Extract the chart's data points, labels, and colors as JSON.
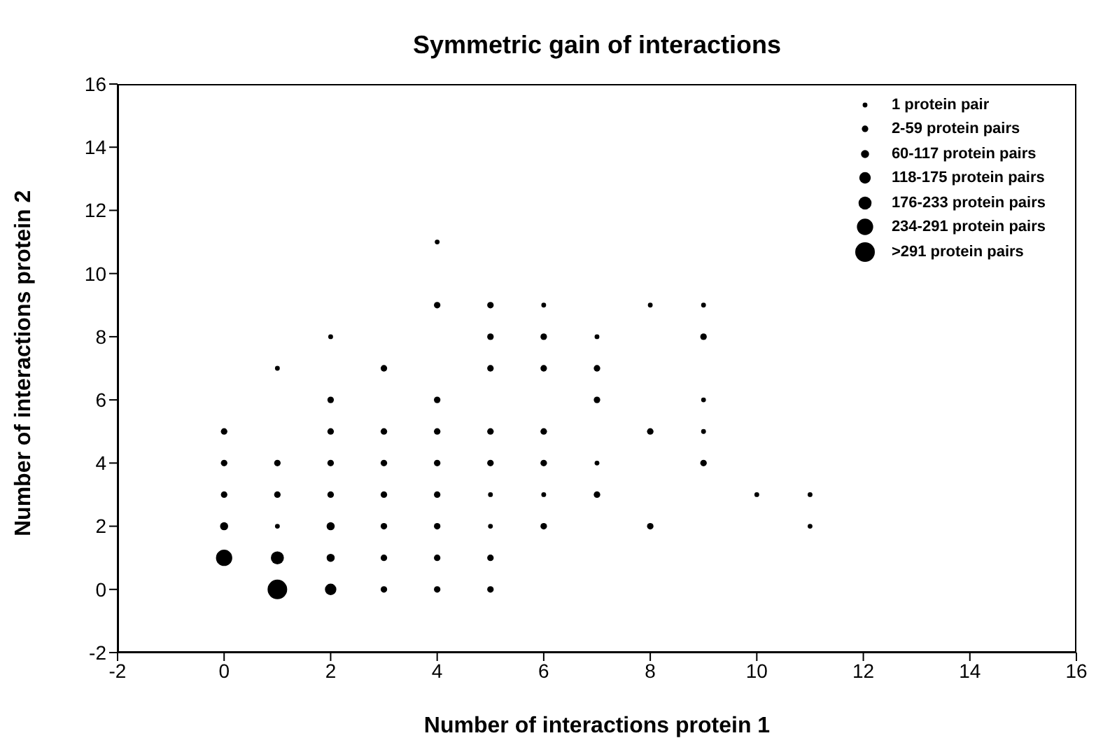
{
  "chart_data": {
    "type": "bubble",
    "title": "Symmetric gain of interactions",
    "xlabel": "Number of interactions protein 1",
    "ylabel": "Number of interactions protein 2",
    "xlim": [
      -2,
      16
    ],
    "xticks": [
      -2,
      0,
      2,
      4,
      6,
      8,
      10,
      12,
      14,
      16
    ],
    "ylim": [
      -2,
      16
    ],
    "yticks": [
      -2,
      0,
      2,
      4,
      6,
      8,
      10,
      12,
      14,
      16
    ],
    "legend": "top right",
    "marker": "circle",
    "series": [
      {
        "name": "1 protein pair",
        "color": "#000000",
        "x": [
          1,
          1,
          2,
          4,
          5,
          5,
          6,
          6,
          7,
          7,
          8,
          9,
          9,
          9,
          10,
          11,
          11
        ],
        "values": [
          7,
          2,
          8,
          11,
          3,
          2,
          9,
          3,
          8,
          4,
          9,
          9,
          6,
          5,
          3,
          3,
          2
        ],
        "sizes": [
          0.06,
          0.06,
          0.06,
          0.06,
          0.06,
          0.06,
          0.06,
          0.06,
          0.06,
          0.06,
          0.06,
          0.06,
          0.06,
          0.06,
          0.06,
          0.06,
          0.06
        ]
      },
      {
        "name": "2-59 protein pairs",
        "color": "#000000",
        "x": [
          0,
          0,
          0,
          1,
          1,
          2,
          2,
          2,
          2,
          3,
          3,
          3,
          3,
          3,
          3,
          3,
          4,
          4,
          4,
          4,
          4,
          4,
          4,
          4,
          5,
          5,
          5,
          5,
          5,
          5,
          5,
          6,
          6,
          6,
          6,
          6,
          7,
          7,
          7,
          8,
          8,
          9,
          9
        ],
        "values": [
          5,
          4,
          3,
          4,
          3,
          6,
          5,
          4,
          3,
          7,
          5,
          4,
          3,
          2,
          1,
          0,
          9,
          6,
          5,
          4,
          3,
          2,
          1,
          0,
          9,
          8,
          7,
          5,
          4,
          1,
          0,
          8,
          7,
          5,
          4,
          2,
          7,
          6,
          3,
          5,
          2,
          8,
          4
        ],
        "sizes": [
          0.11,
          0.11,
          0.11,
          0.11,
          0.11,
          0.11,
          0.11,
          0.11,
          0.11,
          0.11,
          0.11,
          0.11,
          0.11,
          0.11,
          0.11,
          0.11,
          0.11,
          0.11,
          0.11,
          0.11,
          0.11,
          0.11,
          0.11,
          0.11,
          0.11,
          0.11,
          0.11,
          0.11,
          0.11,
          0.11,
          0.11,
          0.11,
          0.11,
          0.11,
          0.11,
          0.11,
          0.11,
          0.11,
          0.11,
          0.11,
          0.11,
          0.11,
          0.11
        ]
      },
      {
        "name": "60-117 protein pairs",
        "color": "#000000",
        "x": [
          0,
          2,
          2
        ],
        "values": [
          2,
          2,
          1
        ],
        "sizes": [
          0.17,
          0.17,
          0.17
        ]
      },
      {
        "name": "118-175 protein pairs",
        "color": "#000000",
        "x": [
          2
        ],
        "values": [
          0
        ],
        "sizes": [
          0.34
        ]
      },
      {
        "name": "176-233 protein pairs",
        "color": "#000000",
        "x": [
          1
        ],
        "values": [
          1
        ],
        "sizes": [
          0.44
        ]
      },
      {
        "name": "234-291 protein pairs",
        "color": "#000000",
        "x": [
          0
        ],
        "values": [
          1
        ],
        "sizes": [
          0.69
        ]
      },
      {
        "name": ">291 protein pairs",
        "color": "#000000",
        "x": [
          1
        ],
        "values": [
          0
        ],
        "sizes": [
          1
        ]
      }
    ]
  }
}
